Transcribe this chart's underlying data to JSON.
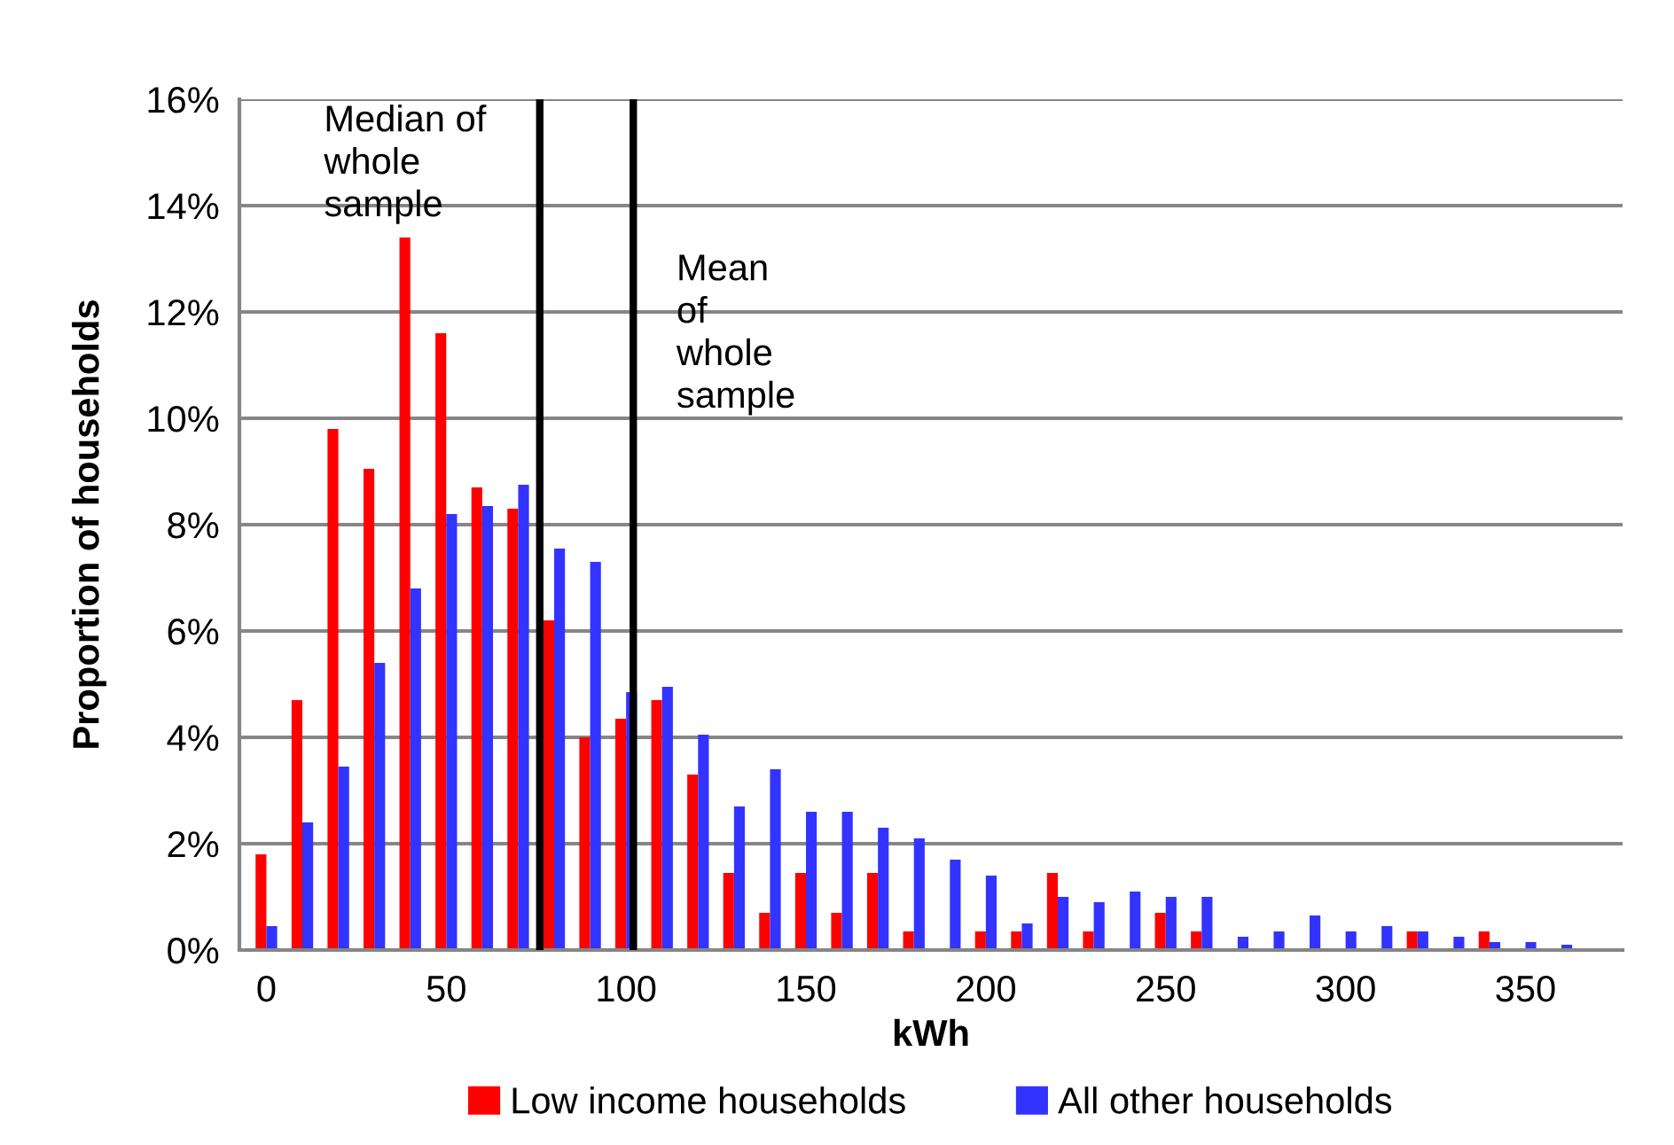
{
  "chart_data": {
    "type": "bar",
    "xlabel": "kWh",
    "ylabel": "Proportion of households",
    "x": [
      0,
      10,
      20,
      30,
      40,
      50,
      60,
      70,
      80,
      90,
      100,
      110,
      120,
      130,
      140,
      150,
      160,
      170,
      180,
      190,
      200,
      210,
      220,
      230,
      240,
      250,
      260,
      270,
      280,
      290,
      300,
      310,
      320,
      330,
      340,
      350,
      360
    ],
    "series": [
      {
        "name": "Low income households",
        "color": "#ff0000",
        "values": [
          1.8,
          4.7,
          9.8,
          9.05,
          13.4,
          11.6,
          8.7,
          8.3,
          6.2,
          4.0,
          4.35,
          4.7,
          3.3,
          1.45,
          0.7,
          1.45,
          0.7,
          1.45,
          0.35,
          0,
          0.35,
          0.35,
          1.45,
          0.35,
          0,
          0.7,
          0.35,
          0,
          0,
          0,
          0,
          0,
          0.35,
          0,
          0.35,
          0,
          0
        ]
      },
      {
        "name": "All other households",
        "color": "#3333ff",
        "values": [
          0.45,
          2.4,
          3.45,
          5.4,
          6.8,
          8.2,
          8.35,
          8.75,
          7.55,
          7.3,
          4.85,
          4.95,
          4.05,
          2.7,
          3.4,
          2.6,
          2.6,
          2.3,
          2.1,
          1.7,
          1.4,
          0.5,
          1.0,
          0.9,
          1.1,
          1.0,
          1.0,
          0.25,
          0.35,
          0.65,
          0.35,
          0.45,
          0.35,
          0.25,
          0.15,
          0.15,
          0.1
        ]
      }
    ],
    "xlim": [
      -7.5,
      377
    ],
    "xticks": [
      0,
      50,
      100,
      150,
      200,
      250,
      300,
      350
    ],
    "ylim": [
      0,
      16
    ],
    "yticks": [
      {
        "value": 0,
        "label": "0%"
      },
      {
        "value": 2,
        "label": "2%"
      },
      {
        "value": 4,
        "label": "4%"
      },
      {
        "value": 6,
        "label": "6%"
      },
      {
        "value": 8,
        "label": "8%"
      },
      {
        "value": 10,
        "label": "10%"
      },
      {
        "value": 12,
        "label": "12%"
      },
      {
        "value": 14,
        "label": "14%"
      },
      {
        "value": 16,
        "label": "16%"
      }
    ],
    "ref_lines": [
      {
        "axis": "x",
        "value": 76,
        "label": "Median of\nwhole\nsample",
        "color": "#000000"
      },
      {
        "axis": "x",
        "value": 102,
        "label": "Mean\nof\nwhole\nsample",
        "color": "#000000"
      }
    ],
    "grid": "y",
    "legend": "bottom"
  }
}
